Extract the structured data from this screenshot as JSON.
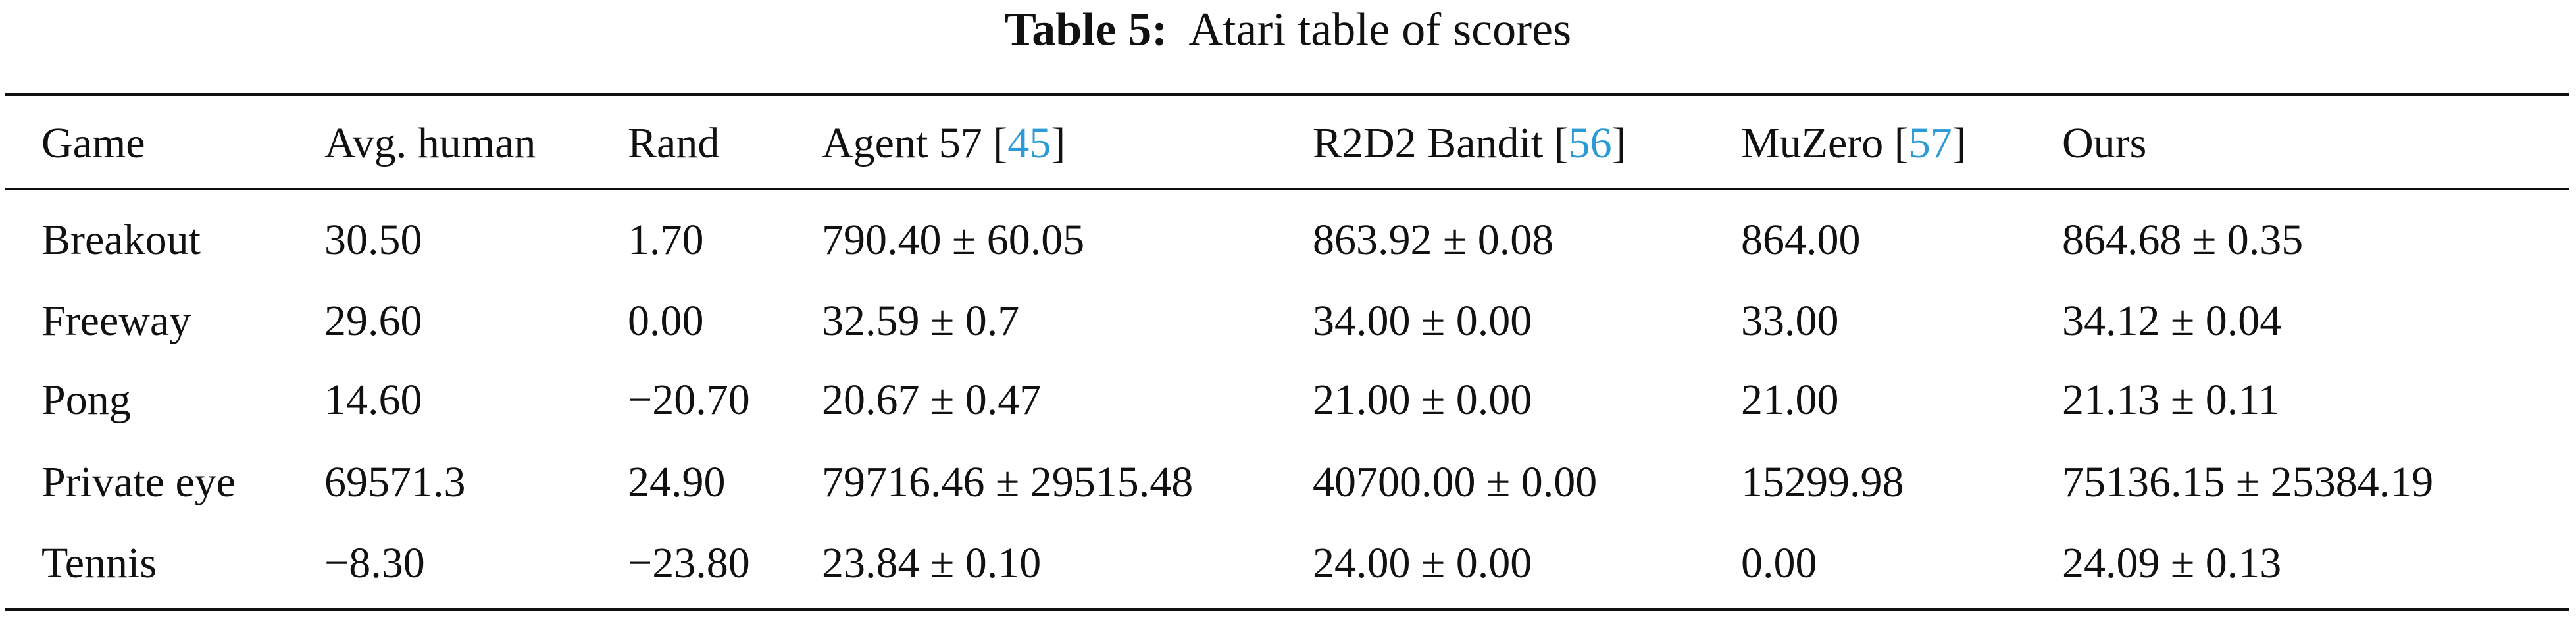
{
  "caption": {
    "label": "Table 5:",
    "text": "Atari table of scores"
  },
  "table": {
    "columns": [
      {
        "text": "Game"
      },
      {
        "text": "Avg. human"
      },
      {
        "text": "Rand"
      },
      {
        "text": "Agent 57 [",
        "cite": "45",
        "after": "]"
      },
      {
        "text": "R2D2 Bandit [",
        "cite": "56",
        "after": "]"
      },
      {
        "text": "MuZero [",
        "cite": "57",
        "after": "]"
      },
      {
        "text": "Ours"
      }
    ],
    "rows": [
      [
        "Breakout",
        "30.50",
        "1.70",
        "790.40 ± 60.05",
        "863.92 ± 0.08",
        "864.00",
        "864.68 ± 0.35"
      ],
      [
        "Freeway",
        "29.60",
        "0.00",
        "32.59 ± 0.7",
        "34.00 ± 0.00",
        "33.00",
        "34.12 ± 0.04"
      ],
      [
        "Pong",
        "14.60",
        "−20.70",
        "20.67 ± 0.47",
        "21.00 ± 0.00",
        "21.00",
        "21.13 ± 0.11"
      ],
      [
        "Private eye",
        "69571.3",
        "24.90",
        "79716.46 ± 29515.48",
        "40700.00 ± 0.00",
        "15299.98",
        "75136.15 ± 25384.19"
      ],
      [
        "Tennis",
        "−8.30",
        "−23.80",
        "23.84 ± 0.10",
        "24.00 ± 0.00",
        "0.00",
        "24.09 ± 0.13"
      ]
    ]
  }
}
